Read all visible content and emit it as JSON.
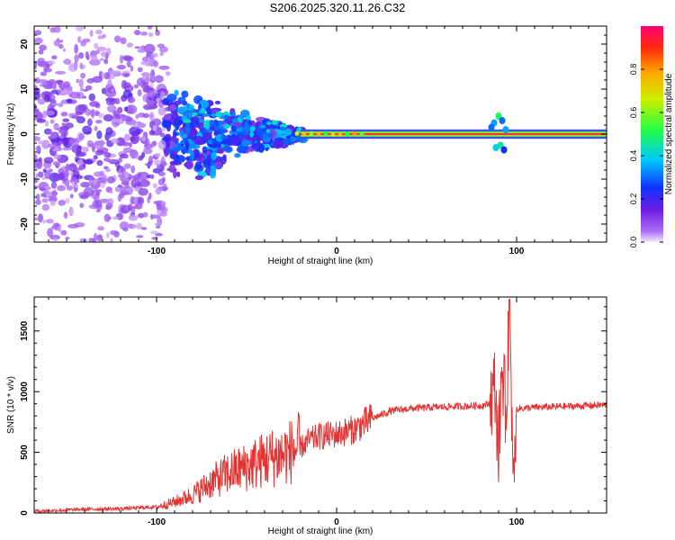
{
  "title": "S206.2025.320.11.26.C32",
  "chart_data": [
    {
      "type": "heatmap",
      "title": "S206.2025.320.11.26.C32",
      "xlabel": "Height of straight line (km)",
      "ylabel": "Frequency (Hz)",
      "xlim": [
        -168,
        150
      ],
      "ylim": [
        -24,
        24
      ],
      "xticks": [
        -100,
        0,
        100
      ],
      "xtick_labels": [
        "-100",
        "0",
        "100"
      ],
      "yticks": [
        -20,
        -10,
        0,
        10,
        20
      ],
      "ytick_labels": [
        "-20",
        "-10",
        "0",
        "10",
        "20"
      ],
      "colorbar": {
        "label": "Normalized spectral amplitude",
        "range": [
          0,
          1
        ],
        "ticks": [
          0.0,
          0.2,
          0.4,
          0.6,
          0.8
        ],
        "tick_labels": [
          "0.0",
          "0.2",
          "0.4",
          "0.6",
          "0.8"
        ]
      },
      "ridge": {
        "frequency": 0,
        "x_start": -20,
        "x_end": 150,
        "peak_amplitude": 0.95
      },
      "scatter_region": {
        "x_range": [
          -168,
          -20
        ],
        "freq_range": [
          -24,
          24
        ]
      },
      "disturbance_at_x": 90
    },
    {
      "type": "line",
      "xlabel": "Height of straight line (km)",
      "ylabel": "SNR (10 * v/v)",
      "xlim": [
        -168,
        150
      ],
      "ylim": [
        0,
        1780
      ],
      "xticks": [
        -100,
        0,
        100
      ],
      "xtick_labels": [
        "-100",
        "0",
        "100"
      ],
      "yticks": [
        0,
        500,
        1000,
        1500
      ],
      "ytick_labels": [
        "0",
        "500",
        "1000",
        "1500"
      ],
      "series": [
        {
          "name": "SNR",
          "color": "#e33333",
          "x": [
            -168,
            -140,
            -120,
            -100,
            -90,
            -80,
            -70,
            -60,
            -50,
            -40,
            -30,
            -20,
            -15,
            -10,
            0,
            10,
            20,
            30,
            40,
            60,
            80,
            85,
            88,
            90,
            92,
            94,
            96,
            98,
            100,
            110,
            130,
            150
          ],
          "values": [
            15,
            30,
            35,
            50,
            90,
            150,
            250,
            330,
            380,
            440,
            480,
            540,
            600,
            630,
            650,
            690,
            780,
            840,
            860,
            875,
            885,
            900,
            1050,
            500,
            1250,
            800,
            1650,
            400,
            860,
            870,
            880,
            890
          ]
        }
      ]
    }
  ]
}
